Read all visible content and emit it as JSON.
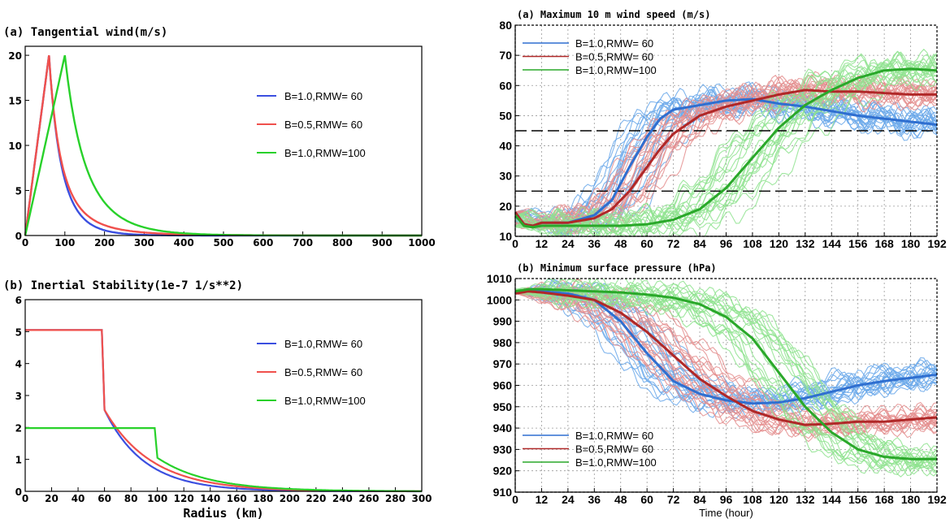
{
  "chart_data": [
    {
      "panel": "tangential",
      "type": "line",
      "title": "(a) Tangential wind(m/s)",
      "xlabel": "",
      "ylabel": "",
      "xlim": [
        0,
        1000
      ],
      "ylim": [
        0,
        21
      ],
      "xticks": [
        0,
        100,
        200,
        300,
        400,
        500,
        600,
        700,
        800,
        900,
        1000
      ],
      "yticks": [
        0,
        5,
        10,
        15,
        20
      ],
      "grid": false,
      "legend_position": "right-center",
      "series": [
        {
          "name": "B=1.0,RMW= 60",
          "color": "#3b4fe0",
          "B": 1.0,
          "RMW": 60,
          "vmax": 20
        },
        {
          "name": "B=0.5,RMW= 60",
          "color": "#f0504c",
          "B": 0.5,
          "RMW": 60,
          "vmax": 20
        },
        {
          "name": "B=1.0,RMW=100",
          "color": "#28d12a",
          "B": 1.0,
          "RMW": 100,
          "vmax": 20
        }
      ]
    },
    {
      "panel": "inertial",
      "type": "line",
      "title": "(b) Inertial Stability(1e-7 1/s**2)",
      "xlabel": "Radius (km)",
      "ylabel": "",
      "xlim": [
        0,
        300
      ],
      "ylim": [
        0,
        6
      ],
      "xticks": [
        0,
        20,
        40,
        60,
        80,
        100,
        120,
        140,
        160,
        180,
        200,
        220,
        240,
        260,
        280,
        300
      ],
      "yticks": [
        0,
        1,
        2,
        3,
        4,
        5,
        6
      ],
      "grid": false,
      "legend_position": "right-center",
      "series": [
        {
          "name": "B=1.0,RMW= 60",
          "color": "#3b4fe0",
          "inner": 5.05,
          "RMW": 60,
          "after": 2.55,
          "decay": 30
        },
        {
          "name": "B=0.5,RMW= 60",
          "color": "#f0504c",
          "inner": 5.05,
          "RMW": 60,
          "after": 2.55,
          "decay": 36
        },
        {
          "name": "B=1.0,RMW=100",
          "color": "#28d12a",
          "inner": 1.98,
          "RMW": 100,
          "after": 1.05,
          "decay": 38
        }
      ]
    },
    {
      "panel": "wind",
      "type": "line",
      "title": "(a)  Maximum 10 m wind speed (m/s)",
      "xlabel": "",
      "ylabel": "",
      "xlim": [
        0,
        192
      ],
      "ylim": [
        10,
        80
      ],
      "xticks": [
        0,
        12,
        24,
        36,
        48,
        60,
        72,
        84,
        96,
        108,
        120,
        132,
        144,
        156,
        168,
        180,
        192
      ],
      "yticks": [
        10,
        20,
        30,
        40,
        50,
        60,
        70,
        80
      ],
      "grid": true,
      "legend_position": "top-left",
      "reference_lines": [
        25,
        45
      ],
      "series": [
        {
          "name": "B=1.0,RMW= 60",
          "color": "#2f6fd0",
          "ensemble_color": "#6aa8ea",
          "x": [
            0,
            4,
            8,
            12,
            24,
            36,
            44,
            52,
            60,
            66,
            72,
            84,
            96,
            108,
            120,
            132,
            144,
            156,
            168,
            180,
            192
          ],
          "values": [
            18,
            14,
            13.5,
            14.5,
            14.5,
            17,
            22,
            33,
            43,
            49,
            52,
            53.5,
            55,
            55.5,
            54,
            53,
            51.5,
            50,
            49,
            48,
            47
          ]
        },
        {
          "name": "B=0.5,RMW= 60",
          "color": "#b02828",
          "ensemble_color": "#e48e8e",
          "x": [
            0,
            4,
            8,
            12,
            24,
            36,
            44,
            52,
            60,
            66,
            72,
            84,
            96,
            108,
            120,
            132,
            144,
            156,
            168,
            180,
            192
          ],
          "values": [
            18,
            14,
            13.5,
            14.5,
            14.5,
            16,
            19,
            25,
            33,
            39,
            44,
            50,
            53,
            55,
            57,
            58.5,
            58,
            58,
            57.5,
            57,
            57
          ]
        },
        {
          "name": "B=1.0,RMW=100",
          "color": "#2aa82a",
          "ensemble_color": "#8fe38f",
          "x": [
            0,
            4,
            8,
            12,
            24,
            36,
            48,
            60,
            72,
            84,
            96,
            108,
            120,
            132,
            144,
            156,
            168,
            180,
            192
          ],
          "values": [
            17,
            13.5,
            13,
            13.5,
            13.5,
            13.5,
            13.5,
            14,
            15.5,
            19,
            26,
            36,
            46,
            53.5,
            58.5,
            62.5,
            65,
            65.5,
            65
          ]
        }
      ]
    },
    {
      "panel": "pressure",
      "type": "line",
      "title": "(b)  Minimum surface pressure (hPa)",
      "xlabel": "Time (hour)",
      "ylabel": "",
      "xlim": [
        0,
        192
      ],
      "ylim": [
        910,
        1010
      ],
      "xticks": [
        0,
        12,
        24,
        36,
        48,
        60,
        72,
        84,
        96,
        108,
        120,
        132,
        144,
        156,
        168,
        180,
        192
      ],
      "yticks": [
        910,
        920,
        930,
        940,
        950,
        960,
        970,
        980,
        990,
        1000,
        1010
      ],
      "grid": true,
      "legend_position": "bottom-left",
      "series": [
        {
          "name": "B=1.0,RMW= 60",
          "color": "#2f6fd0",
          "ensemble_color": "#6aa8ea",
          "x": [
            0,
            6,
            12,
            24,
            36,
            48,
            60,
            72,
            84,
            96,
            108,
            120,
            132,
            144,
            156,
            168,
            180,
            192
          ],
          "values": [
            1003,
            1004.5,
            1004,
            1003,
            1000,
            990,
            975,
            962,
            956,
            953,
            951.5,
            952,
            954,
            957,
            960,
            962,
            963.5,
            965
          ]
        },
        {
          "name": "B=0.5,RMW= 60",
          "color": "#b02828",
          "ensemble_color": "#e48e8e",
          "x": [
            0,
            6,
            12,
            24,
            36,
            48,
            60,
            72,
            84,
            96,
            108,
            120,
            132,
            144,
            156,
            168,
            180,
            192
          ],
          "values": [
            1003,
            1004,
            1003.5,
            1002,
            1000,
            994,
            985,
            974,
            963,
            955,
            948,
            944,
            941.5,
            942,
            943,
            943,
            944,
            945
          ]
        },
        {
          "name": "B=1.0,RMW=100",
          "color": "#2aa82a",
          "ensemble_color": "#8fe38f",
          "x": [
            0,
            6,
            12,
            24,
            36,
            48,
            60,
            72,
            84,
            96,
            108,
            120,
            132,
            144,
            156,
            168,
            180,
            192
          ],
          "values": [
            1004,
            1005,
            1005,
            1004.5,
            1004,
            1003.5,
            1002.5,
            1001,
            998,
            992,
            982,
            966,
            950,
            938,
            930,
            926.5,
            925.5,
            925.5
          ]
        }
      ]
    }
  ]
}
